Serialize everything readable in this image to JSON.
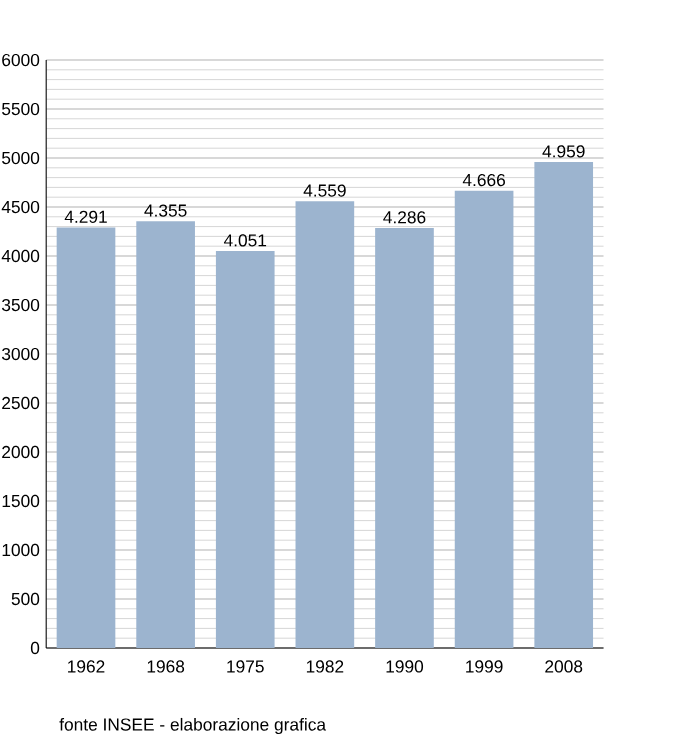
{
  "chart_data": {
    "type": "bar",
    "categories": [
      "1962",
      "1968",
      "1975",
      "1982",
      "1990",
      "1999",
      "2008"
    ],
    "values": [
      4291,
      4355,
      4051,
      4559,
      4286,
      4666,
      4959
    ],
    "value_labels": [
      "4.291",
      "4.355",
      "4.051",
      "4.559",
      "4.286",
      "4.666",
      "4.959"
    ],
    "color": "#9cb4cf",
    "ylim": [
      0,
      6000
    ],
    "yticks": [
      0,
      500,
      1000,
      1500,
      2000,
      2500,
      3000,
      3500,
      4000,
      4500,
      5000,
      5500,
      6000
    ],
    "grid": "y",
    "annotations": [
      "fonte INSEE - elaborazione grafica"
    ]
  }
}
